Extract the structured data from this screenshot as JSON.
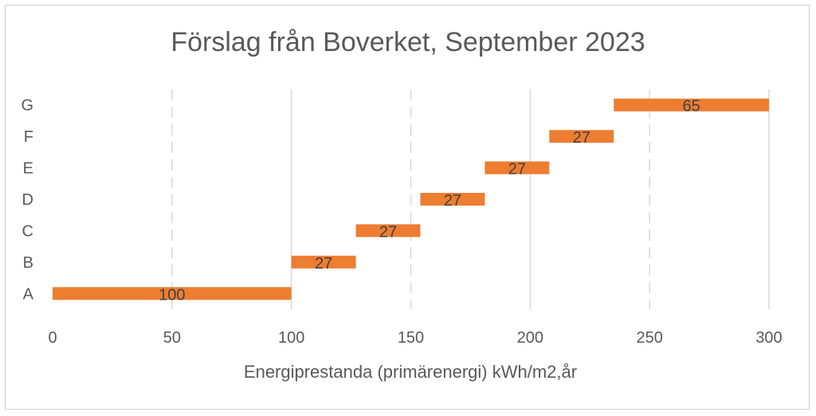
{
  "chart_data": {
    "type": "bar",
    "orientation": "horizontal-floating",
    "title": "Förslag från Boverket, September 2023",
    "xlabel": "Energiprestanda (primärenergi) kWh/m2,år",
    "ylabel": "",
    "xlim": [
      0,
      300
    ],
    "xticks": [
      0,
      50,
      100,
      150,
      200,
      250,
      300
    ],
    "grid": "vertical-dashed",
    "legend": "none",
    "bar_color": "#ED7D31",
    "categories": [
      "A",
      "B",
      "C",
      "D",
      "E",
      "F",
      "G"
    ],
    "starts": [
      0,
      100,
      127,
      154,
      181,
      208,
      235
    ],
    "values": [
      100,
      27,
      27,
      27,
      27,
      27,
      65
    ],
    "data_labels": [
      "100",
      "27",
      "27",
      "27",
      "27",
      "27",
      "65"
    ]
  }
}
